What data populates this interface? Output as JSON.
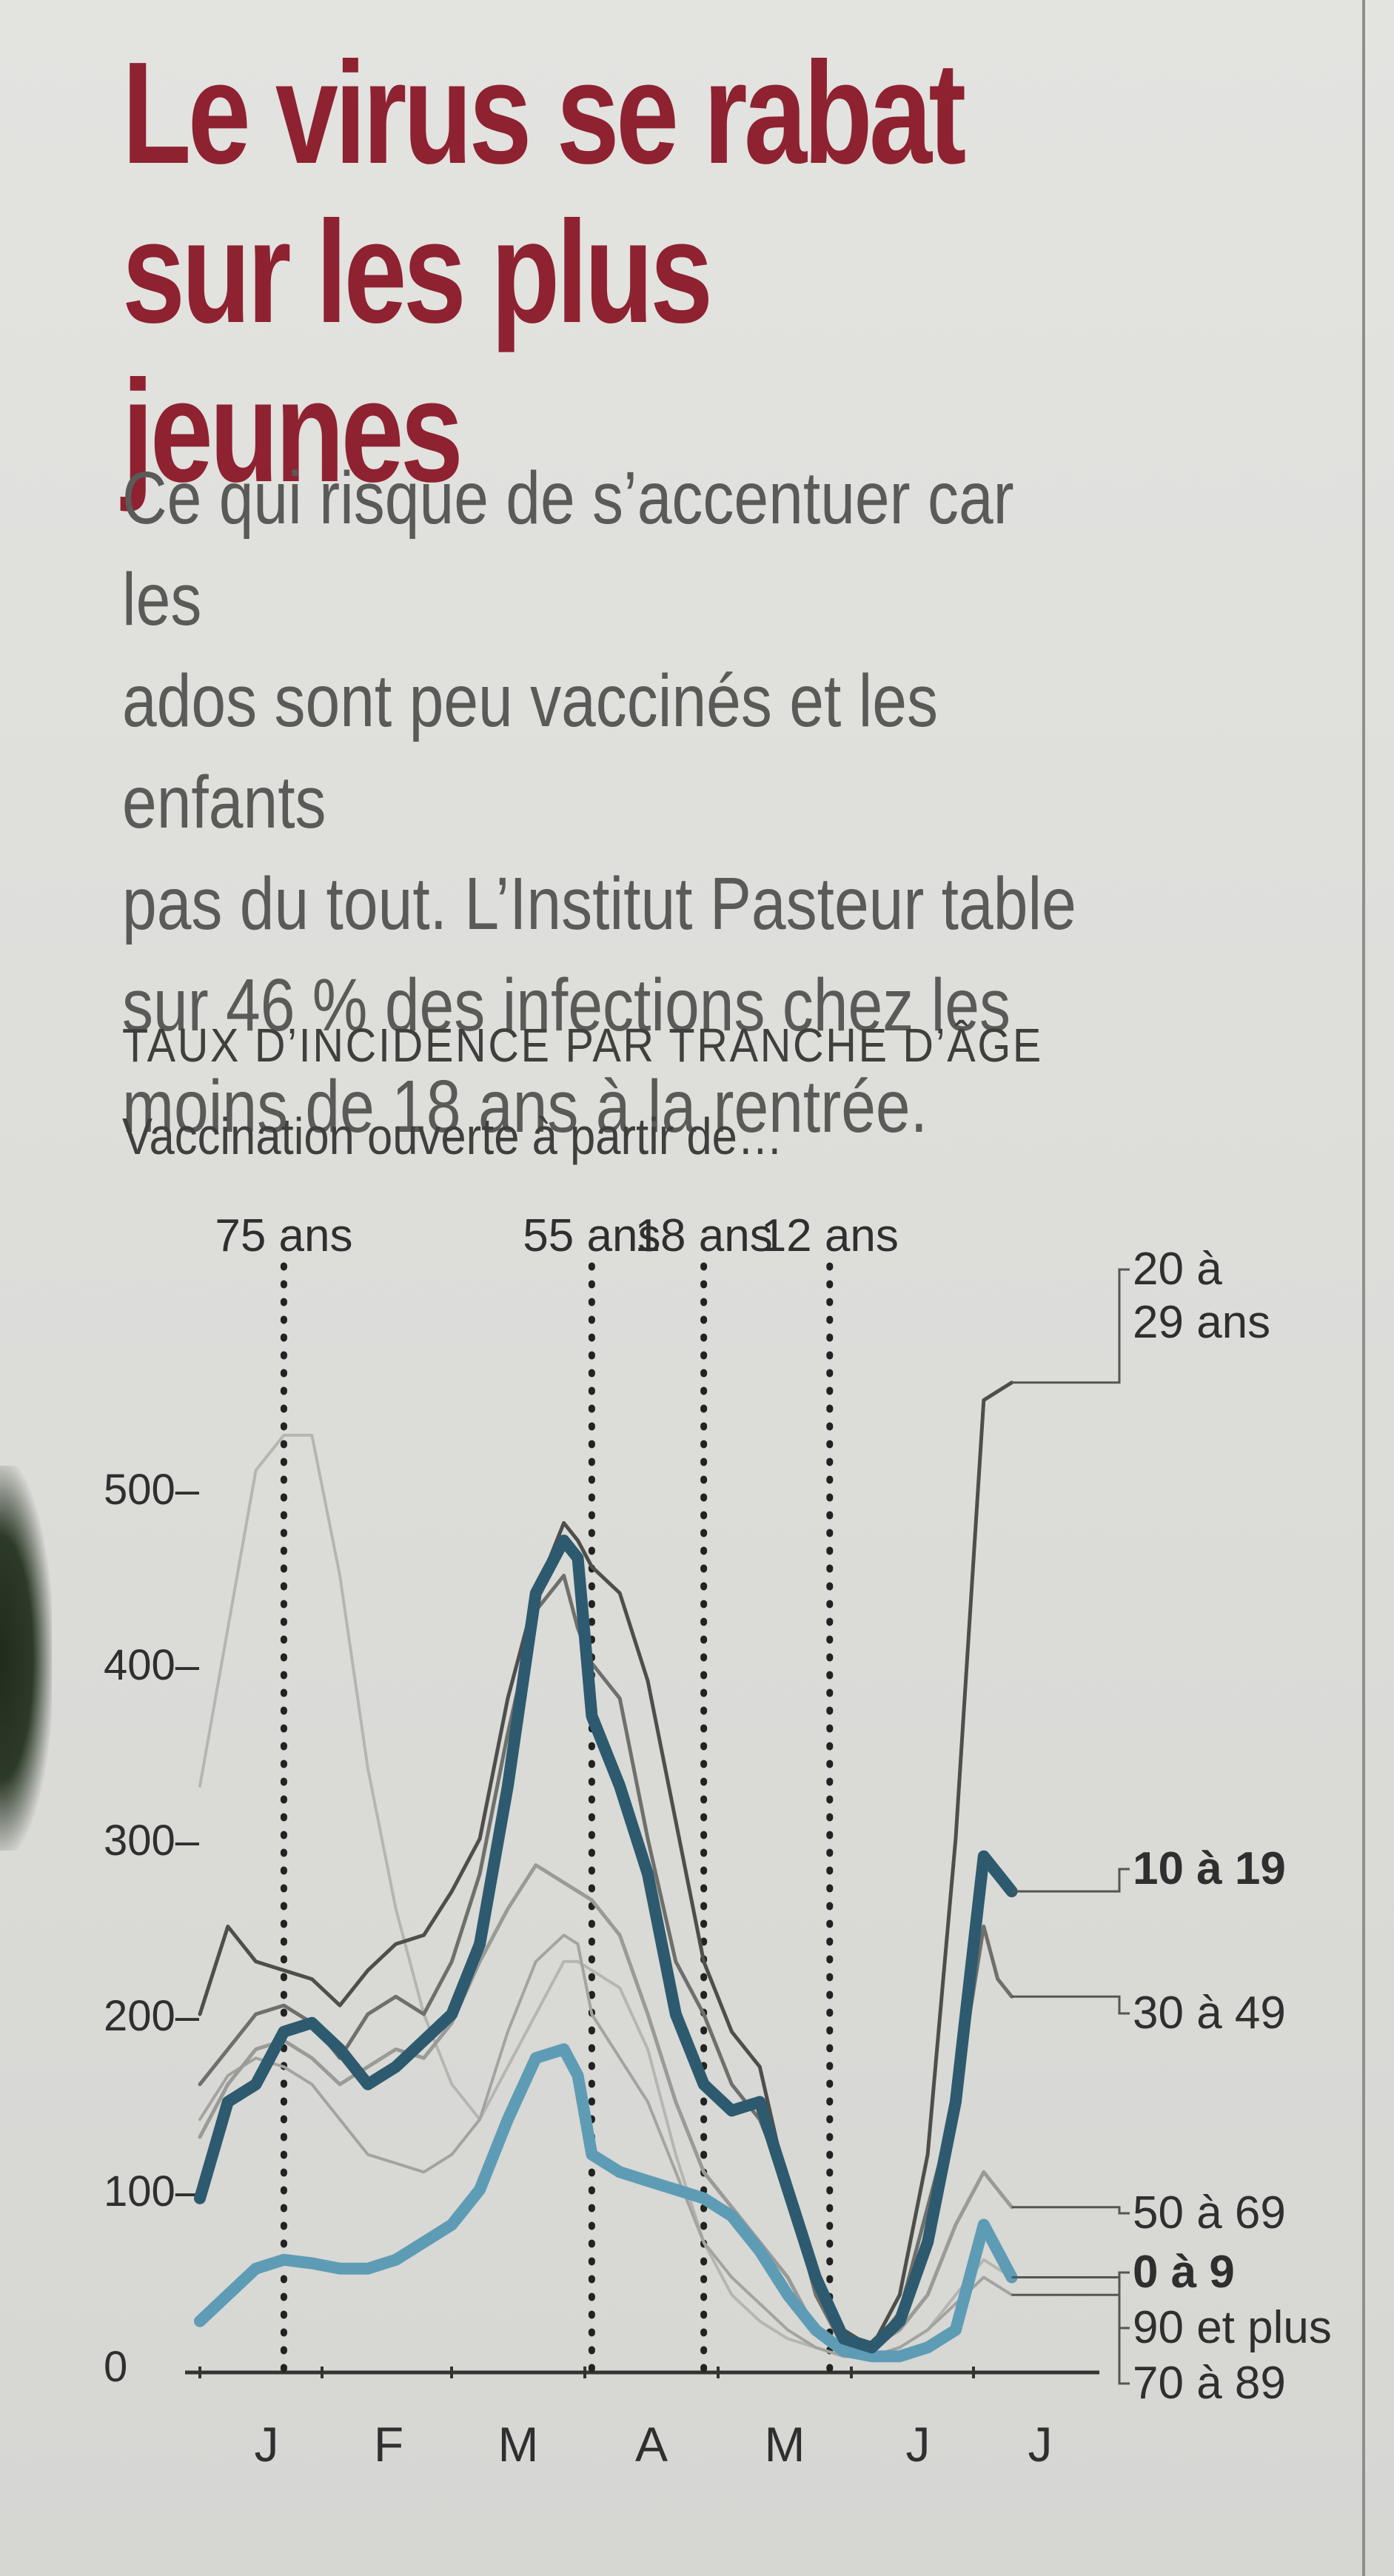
{
  "headline": "Le virus se rabat\nsur les plus jeunes",
  "intro": "Ce qui risque de s’accentuer car les\nados sont peu vaccinés et les enfants\npas du tout. L’Institut Pasteur table\nsur 46 % des infections chez les\nmoins de 18 ans à la rentrée.",
  "colors": {
    "headline": "#8e2230",
    "dark_teal": "#2d5a6e",
    "light_teal": "#5e9cb5",
    "gray_dark": "#555555",
    "gray_mid": "#7a7a7a",
    "gray_light": "#a5a5a5"
  },
  "chart_data": {
    "type": "line",
    "title": "TAUX D’INCIDENCE PAR TRANCHE D’ÂGE",
    "subtitle": "Vaccination ouverte à partir de…",
    "x_ticks": [
      "J",
      "F",
      "M",
      "A",
      "M",
      "J",
      "J"
    ],
    "y_ticks": [
      "0",
      "100",
      "200",
      "300",
      "400",
      "500"
    ],
    "ylim": [
      0,
      600
    ],
    "xlim": [
      0,
      32
    ],
    "markers": [
      {
        "label": "75 ans",
        "x": 3
      },
      {
        "label": "55 ans",
        "x": 14
      },
      {
        "label": "18 ans",
        "x": 18
      },
      {
        "label": "12 ans",
        "x": 22.5
      }
    ],
    "series": [
      {
        "name": "20 à 29 ans",
        "style": "dark-gray-thin",
        "x": [
          0,
          1,
          2,
          3,
          4,
          5,
          6,
          7,
          8,
          9,
          10,
          11,
          12,
          13,
          13.5,
          14,
          15,
          16,
          17,
          18,
          19,
          20,
          21,
          22,
          23,
          24,
          25,
          26,
          27,
          28,
          28.5,
          29
        ],
        "y": [
          200,
          250,
          230,
          225,
          220,
          205,
          225,
          240,
          245,
          270,
          300,
          380,
          440,
          480,
          470,
          455,
          440,
          390,
          310,
          230,
          190,
          170,
          100,
          50,
          20,
          10,
          40,
          120,
          300,
          550,
          555,
          560
        ]
      },
      {
        "name": "10 à 19",
        "style": "dark-teal-thick",
        "x": [
          0,
          1,
          2,
          3,
          4,
          5,
          6,
          7,
          8,
          9,
          10,
          11,
          12,
          13,
          13.5,
          14,
          15,
          16,
          17,
          18,
          19,
          20,
          21,
          22,
          23,
          24,
          25,
          26,
          27,
          28,
          28.5,
          29
        ],
        "y": [
          95,
          150,
          160,
          190,
          195,
          180,
          160,
          170,
          185,
          200,
          240,
          330,
          440,
          470,
          460,
          370,
          330,
          280,
          200,
          160,
          145,
          150,
          100,
          50,
          15,
          10,
          25,
          70,
          150,
          290,
          280,
          270
        ]
      },
      {
        "name": "30 à 49",
        "style": "gray-medium",
        "x": [
          0,
          1,
          2,
          3,
          4,
          5,
          6,
          7,
          8,
          9,
          10,
          11,
          12,
          13,
          13.5,
          14,
          15,
          16,
          17,
          18,
          19,
          20,
          21,
          22,
          23,
          24,
          25,
          26,
          27,
          28,
          28.5,
          29
        ],
        "y": [
          160,
          180,
          200,
          205,
          195,
          175,
          200,
          210,
          200,
          230,
          280,
          360,
          430,
          450,
          420,
          400,
          380,
          300,
          230,
          200,
          160,
          140,
          100,
          40,
          10,
          10,
          30,
          90,
          150,
          250,
          220,
          210
        ]
      },
      {
        "name": "50 à 69",
        "style": "gray-light",
        "x": [
          0,
          1,
          2,
          3,
          4,
          5,
          6,
          7,
          8,
          9,
          10,
          11,
          12,
          13,
          13.5,
          14,
          15,
          16,
          17,
          18,
          19,
          20,
          21,
          22,
          23,
          24,
          25,
          26,
          27,
          28,
          28.5,
          29
        ],
        "y": [
          130,
          160,
          180,
          185,
          175,
          160,
          170,
          180,
          175,
          195,
          230,
          260,
          285,
          275,
          270,
          265,
          245,
          200,
          150,
          110,
          90,
          70,
          50,
          20,
          10,
          10,
          20,
          40,
          80,
          110,
          100,
          90
        ]
      },
      {
        "name": "90 et plus",
        "style": "gray-faint",
        "x": [
          0,
          1,
          2,
          3,
          4,
          5,
          6,
          7,
          8,
          9,
          10,
          11,
          12,
          13,
          13.5,
          14,
          15,
          16,
          17,
          18,
          19,
          20,
          21,
          22,
          23,
          24,
          25,
          26,
          27,
          28,
          28.5,
          29
        ],
        "y": [
          330,
          420,
          510,
          530,
          530,
          450,
          340,
          260,
          200,
          160,
          140,
          170,
          200,
          230,
          230,
          225,
          215,
          180,
          120,
          70,
          40,
          25,
          15,
          10,
          5,
          5,
          10,
          20,
          40,
          60,
          55,
          50
        ]
      },
      {
        "name": "70 à 89",
        "style": "gray-faint-2",
        "x": [
          0,
          1,
          2,
          3,
          4,
          5,
          6,
          7,
          8,
          9,
          10,
          11,
          12,
          13,
          13.5,
          14,
          15,
          16,
          17,
          18,
          19,
          20,
          21,
          22,
          23,
          24,
          25,
          26,
          27,
          28,
          28.5,
          29
        ],
        "y": [
          140,
          165,
          175,
          170,
          160,
          140,
          120,
          115,
          110,
          120,
          140,
          190,
          230,
          245,
          240,
          200,
          175,
          150,
          110,
          70,
          50,
          35,
          20,
          10,
          5,
          5,
          10,
          20,
          35,
          50,
          45,
          40
        ]
      },
      {
        "name": "0 à 9",
        "style": "light-teal-thick",
        "x": [
          0,
          1,
          2,
          3,
          4,
          5,
          6,
          7,
          8,
          9,
          10,
          11,
          12,
          13,
          13.5,
          14,
          15,
          16,
          17,
          18,
          19,
          20,
          21,
          22,
          23,
          24,
          25,
          26,
          27,
          28,
          28.5,
          29
        ],
        "y": [
          25,
          40,
          55,
          60,
          58,
          55,
          55,
          60,
          70,
          80,
          100,
          140,
          175,
          180,
          165,
          120,
          110,
          105,
          100,
          95,
          85,
          65,
          40,
          20,
          8,
          5,
          5,
          10,
          20,
          80,
          65,
          50
        ]
      }
    ],
    "series_labels": [
      "20 à\n29 ans",
      "10 à 19",
      "30 à 49",
      "50 à 69",
      "0 à 9",
      "90 et plus",
      "70 à 89"
    ],
    "grid": false,
    "legend": "right-inline"
  }
}
